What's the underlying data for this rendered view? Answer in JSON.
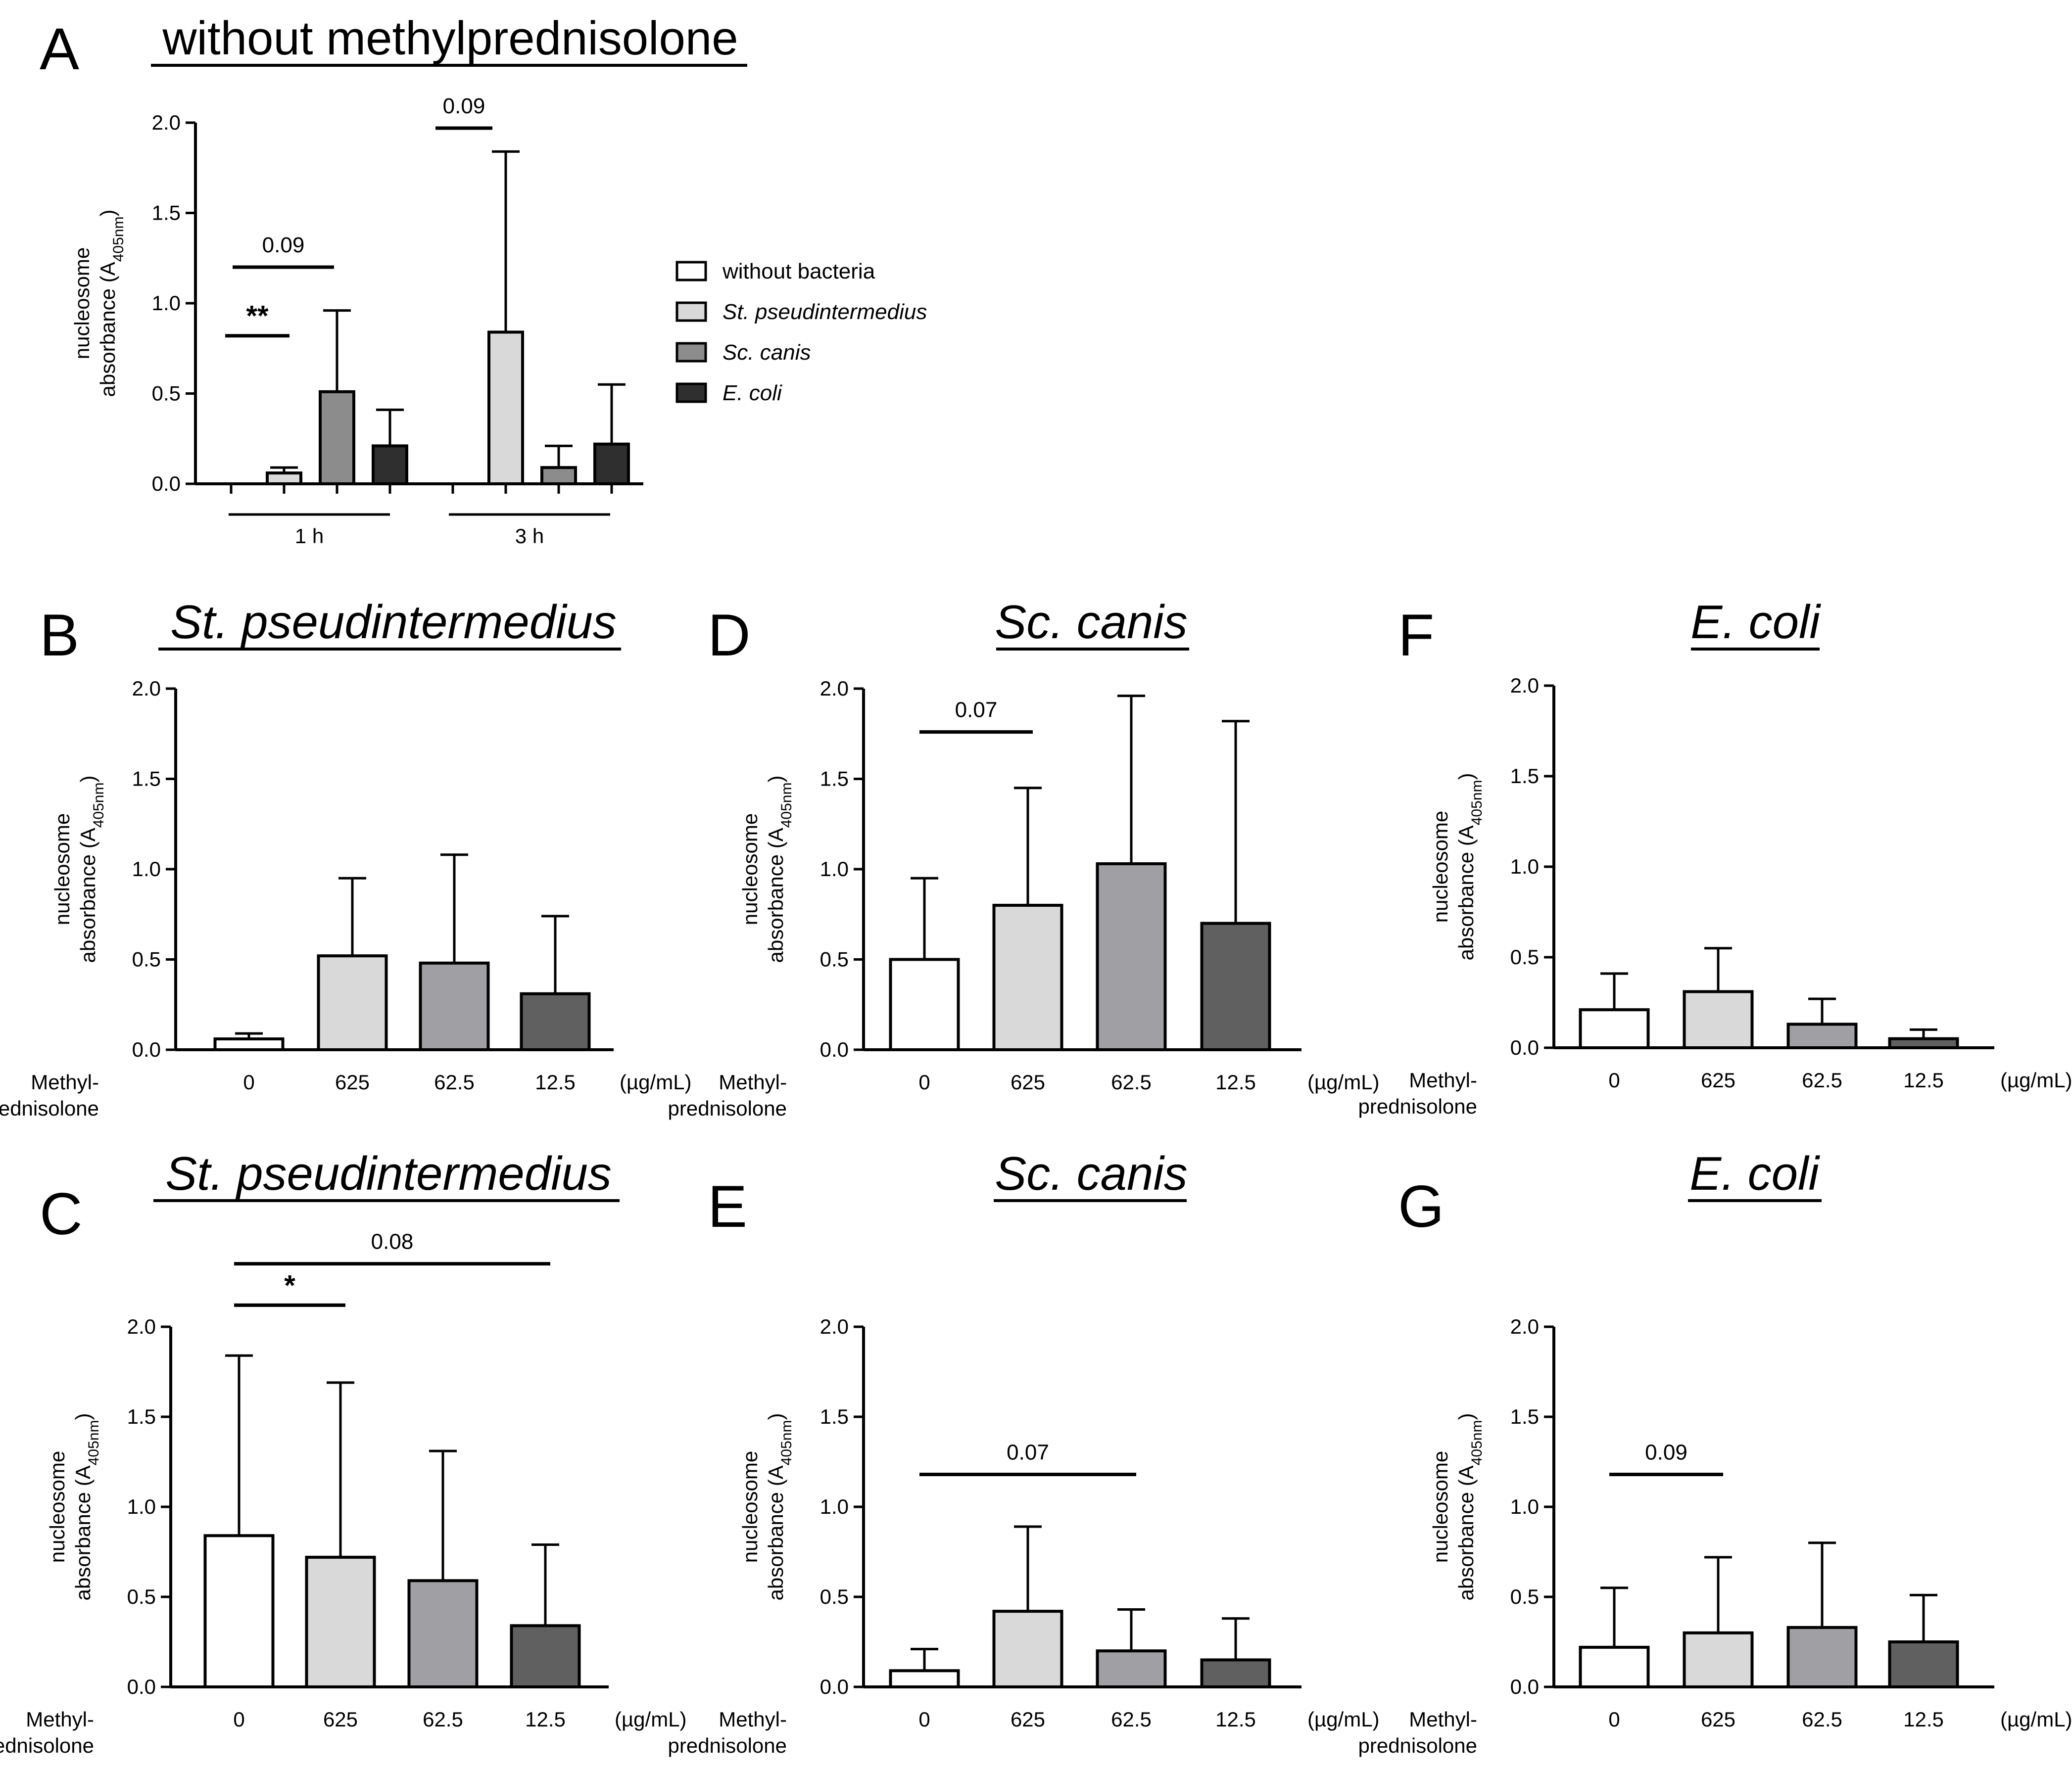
{
  "chart_data": [
    {
      "panel": "A",
      "type": "bar",
      "title": "without methylprednisolone",
      "ylabel": "nucleosome absorbance (A405nm)",
      "ylabel_line1": "nucleosome",
      "ylabel_line2": "absorbance (A",
      "ylabel_sub": "405nm",
      "ylabel_close": ")",
      "ylim": [
        0,
        2.0
      ],
      "yticks": [
        "0.0",
        "0.5",
        "1.0",
        "1.5",
        "2.0"
      ],
      "group_labels": [
        "1 h",
        "3 h"
      ],
      "series": [
        {
          "name": "without bacteria",
          "italic": false,
          "color": "#ffffff",
          "values": [
            0.0,
            0.0
          ],
          "errors": [
            0.0,
            0.0
          ]
        },
        {
          "name": "St. pseudintermedius",
          "italic": true,
          "color": "#d9d9d9",
          "values": [
            0.06,
            0.84
          ],
          "errors": [
            0.03,
            1.0
          ]
        },
        {
          "name": "Sc. canis",
          "italic": true,
          "color": "#8c8c8c",
          "values": [
            0.51,
            0.09
          ],
          "errors": [
            0.45,
            0.12
          ]
        },
        {
          "name": "E. coli",
          "italic": true,
          "color": "#2f2f2f",
          "values": [
            0.21,
            0.22
          ],
          "errors": [
            0.2,
            0.33
          ]
        }
      ],
      "significance": [
        {
          "label": "**",
          "bold": true,
          "from": "1 h / without bacteria",
          "to": "1 h / St. pseudintermedius"
        },
        {
          "label": "0.09",
          "bold": false,
          "from": "1 h / without bacteria",
          "to": "1 h / Sc. canis"
        },
        {
          "label": "0.09",
          "bold": false,
          "from": "3 h / without bacteria",
          "to": "3 h / St. pseudintermedius"
        }
      ]
    },
    {
      "panel": "B",
      "type": "bar",
      "title": "St. pseudintermedius",
      "ylabel": "nucleosome absorbance (A405nm)",
      "ylim": [
        0,
        2.0
      ],
      "yticks": [
        "0.0",
        "0.5",
        "1.0",
        "1.5",
        "2.0"
      ],
      "categories": [
        "0",
        "625",
        "62.5",
        "12.5"
      ],
      "values": [
        0.06,
        0.52,
        0.48,
        0.31
      ],
      "errors": [
        0.03,
        0.43,
        0.6,
        0.43
      ],
      "colors": [
        "#ffffff",
        "#d9d9d9",
        "#a0a0a4",
        "#606060"
      ],
      "row_label_1": "Methyl-",
      "row_label_2": "prednisolone",
      "unit": "(µg/mL)",
      "significance": []
    },
    {
      "panel": "C",
      "type": "bar",
      "title": "St. pseudintermedius",
      "ylabel": "nucleosome absorbance (A405nm)",
      "ylim": [
        0,
        2.0
      ],
      "yticks": [
        "0.0",
        "0.5",
        "1.0",
        "1.5",
        "2.0"
      ],
      "categories": [
        "0",
        "625",
        "62.5",
        "12.5"
      ],
      "values": [
        0.84,
        0.72,
        0.59,
        0.34
      ],
      "errors": [
        1.0,
        0.97,
        0.72,
        0.45
      ],
      "colors": [
        "#ffffff",
        "#d9d9d9",
        "#a0a0a4",
        "#606060"
      ],
      "row_label_1": "Methyl-",
      "row_label_2": "prednisolone",
      "unit": "(µg/mL)",
      "significance": [
        {
          "label": "*",
          "bold": true,
          "from": "0",
          "to": "625"
        },
        {
          "label": "0.08",
          "bold": false,
          "from": "0",
          "to": "12.5"
        }
      ]
    },
    {
      "panel": "D",
      "type": "bar",
      "title": "Sc. canis",
      "ylabel": "nucleosome absorbance (A405nm)",
      "ylim": [
        0,
        2.0
      ],
      "yticks": [
        "0.0",
        "0.5",
        "1.0",
        "1.5",
        "2.0"
      ],
      "categories": [
        "0",
        "625",
        "62.5",
        "12.5"
      ],
      "values": [
        0.5,
        0.8,
        1.03,
        0.7
      ],
      "errors": [
        0.45,
        0.65,
        0.93,
        1.12
      ],
      "colors": [
        "#ffffff",
        "#d9d9d9",
        "#a0a0a4",
        "#606060"
      ],
      "row_label_1": "Methyl-",
      "row_label_2": "prednisolone",
      "unit": "(µg/mL)",
      "significance": [
        {
          "label": "0.07",
          "bold": false,
          "from": "0",
          "to": "625"
        }
      ]
    },
    {
      "panel": "E",
      "type": "bar",
      "title": "Sc. canis",
      "ylabel": "nucleosome absorbance (A405nm)",
      "ylim": [
        0,
        2.0
      ],
      "yticks": [
        "0.0",
        "0.5",
        "1.0",
        "1.5",
        "2.0"
      ],
      "categories": [
        "0",
        "625",
        "62.5",
        "12.5"
      ],
      "values": [
        0.09,
        0.42,
        0.2,
        0.15
      ],
      "errors": [
        0.12,
        0.47,
        0.23,
        0.23
      ],
      "colors": [
        "#ffffff",
        "#d9d9d9",
        "#a0a0a4",
        "#606060"
      ],
      "row_label_1": "Methyl-",
      "row_label_2": "prednisolone",
      "unit": "(µg/mL)",
      "significance": [
        {
          "label": "0.07",
          "bold": false,
          "from": "0",
          "to": "62.5"
        }
      ]
    },
    {
      "panel": "F",
      "type": "bar",
      "title": "E. coli",
      "ylabel": "nucleosome absorbance (A405nm)",
      "ylim": [
        0,
        2.0
      ],
      "yticks": [
        "0.0",
        "0.5",
        "1.0",
        "1.5",
        "2.0"
      ],
      "categories": [
        "0",
        "625",
        "62.5",
        "12.5"
      ],
      "values": [
        0.21,
        0.31,
        0.13,
        0.05
      ],
      "errors": [
        0.2,
        0.24,
        0.14,
        0.05
      ],
      "colors": [
        "#ffffff",
        "#d9d9d9",
        "#a0a0a4",
        "#606060"
      ],
      "row_label_1": "Methyl-",
      "row_label_2": "prednisolone",
      "unit": "(µg/mL)",
      "significance": []
    },
    {
      "panel": "G",
      "type": "bar",
      "title": "E. coli",
      "ylabel": "nucleosome absorbance (A405nm)",
      "ylim": [
        0,
        2.0
      ],
      "yticks": [
        "0.0",
        "0.5",
        "1.0",
        "1.5",
        "2.0"
      ],
      "categories": [
        "0",
        "625",
        "62.5",
        "12.5"
      ],
      "values": [
        0.22,
        0.3,
        0.33,
        0.25
      ],
      "errors": [
        0.33,
        0.42,
        0.47,
        0.26
      ],
      "colors": [
        "#ffffff",
        "#d9d9d9",
        "#a0a0a4",
        "#606060"
      ],
      "row_label_1": "Methyl-",
      "row_label_2": "prednisolone",
      "unit": "(µg/mL)",
      "significance": [
        {
          "label": "0.09",
          "bold": false,
          "from": "0",
          "to": "625"
        }
      ]
    }
  ]
}
